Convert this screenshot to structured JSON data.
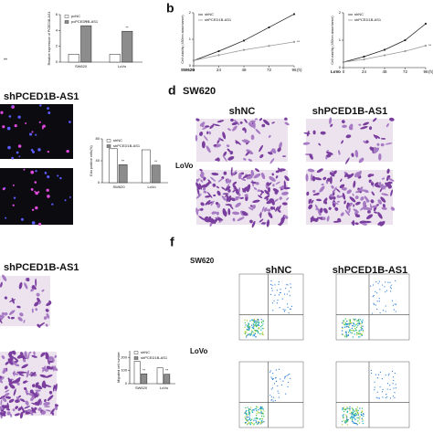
{
  "figure": {
    "panel_b": "b",
    "panel_d": "d",
    "panel_f": "f",
    "fragment_mark": "**",
    "edu_group": "shPCED1B-AS1",
    "mig_group": "shPCED1B-AS1",
    "d_cell1": "SW620",
    "d_col1": "shNC",
    "d_col2": "shPCED1B-AS1",
    "d_cell2": "LoVo",
    "f_cell1": "SW620",
    "f_col1": "shNC",
    "f_col2": "shPCED1B-AS1",
    "f_cell2": "LoVo"
  },
  "chart_data": [
    {
      "type": "bar",
      "ylabel": "Relative expression of PCED1B-AS1",
      "categories": [
        "SW620",
        "LoVo"
      ],
      "series": [
        {
          "name": "pcNC",
          "color": "#ffffff",
          "values": [
            1,
            1
          ]
        },
        {
          "name": "pcPCED1B-AS1",
          "color": "#8c8c8c",
          "values": [
            4.6,
            3.9
          ]
        }
      ],
      "significance": [
        "**",
        "**"
      ],
      "ylim": [
        0,
        6
      ],
      "yticks": [
        0,
        2,
        4,
        6
      ]
    },
    {
      "type": "line",
      "title": "SW620",
      "ylabel": "Cell viability (450nm absorbance)",
      "xlabel": "(h)",
      "x": [
        0,
        24,
        48,
        72,
        96
      ],
      "series": [
        {
          "name": "shNC",
          "color": "#222222",
          "values": [
            0.2,
            0.55,
            0.95,
            1.45,
            1.95
          ]
        },
        {
          "name": "shPCED1B-AS1",
          "color": "#999999",
          "values": [
            0.2,
            0.4,
            0.6,
            0.75,
            0.9
          ]
        }
      ],
      "significance": "**",
      "xlim": [
        0,
        96
      ],
      "xticks": [
        0,
        24,
        48,
        72,
        96
      ],
      "ylim": [
        0,
        2
      ],
      "yticks": [
        0,
        1,
        2
      ]
    },
    {
      "type": "line",
      "title": "LoVo",
      "ylabel": "Cell viability (450nm absorbance)",
      "xlabel": "(h)",
      "x": [
        0,
        24,
        48,
        72,
        96
      ],
      "series": [
        {
          "name": "shNC",
          "color": "#222222",
          "values": [
            0.2,
            0.4,
            0.65,
            1.0,
            1.6
          ]
        },
        {
          "name": "shPCED1B-AS1",
          "color": "#999999",
          "values": [
            0.2,
            0.3,
            0.45,
            0.6,
            0.8
          ]
        }
      ],
      "significance": "**",
      "xlim": [
        0,
        96
      ],
      "xticks": [
        0,
        24,
        48,
        72,
        96
      ],
      "ylim": [
        0,
        2
      ],
      "yticks": [
        0,
        1,
        2
      ]
    },
    {
      "type": "bar",
      "ylabel": "Edu positive cells(%)",
      "categories": [
        "SW620",
        "LoVo"
      ],
      "series": [
        {
          "name": "shNC",
          "color": "#ffffff",
          "values": [
            62,
            60
          ]
        },
        {
          "name": "shPCED1B-AS1",
          "color": "#8c8c8c",
          "values": [
            33,
            32
          ]
        }
      ],
      "significance": [
        "**",
        "**"
      ],
      "ylim": [
        0,
        80
      ],
      "yticks": [
        0,
        40,
        80
      ]
    },
    {
      "type": "bar",
      "ylabel": "Migrated cell number",
      "categories": [
        "SW620",
        "LoVo"
      ],
      "series": [
        {
          "name": "shNC",
          "color": "#ffffff",
          "values": [
            170,
            120
          ]
        },
        {
          "name": "shPCED1B-AS1",
          "color": "#8c8c8c",
          "values": [
            75,
            72
          ]
        }
      ],
      "significance": [
        "**",
        "**"
      ],
      "ylim": [
        0,
        250
      ],
      "yticks": [
        0,
        100,
        200
      ]
    }
  ]
}
